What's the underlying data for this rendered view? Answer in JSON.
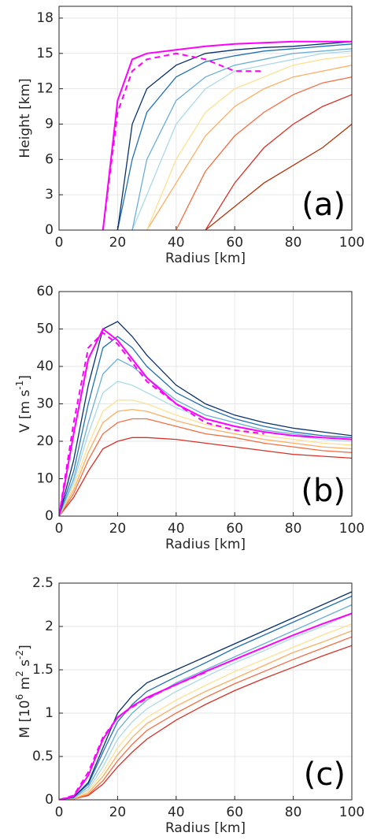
{
  "chart_data": [
    {
      "type": "line",
      "annotation": "(a)",
      "xlabel": "Radius [km]",
      "ylabel_parts": [
        {
          "text": "Height [km]"
        }
      ],
      "xlim": [
        0,
        100
      ],
      "xticks": [
        0,
        20,
        40,
        60,
        80,
        100
      ],
      "ylim": [
        0,
        19
      ],
      "yticks": [
        0,
        3,
        6,
        9,
        12,
        15,
        18
      ],
      "grid": true,
      "x": [
        10,
        15,
        20,
        25,
        30,
        40,
        50,
        60,
        70,
        80,
        90,
        100
      ],
      "series": [
        {
          "color": "#b2330a",
          "values": [
            null,
            null,
            null,
            null,
            null,
            null,
            0,
            2,
            4,
            5.5,
            7,
            9
          ]
        },
        {
          "color": "#d73027",
          "values": [
            null,
            null,
            null,
            null,
            null,
            null,
            0,
            4,
            7,
            9,
            10.5,
            11.5
          ]
        },
        {
          "color": "#f46d43",
          "values": [
            null,
            null,
            null,
            null,
            null,
            0,
            5,
            8,
            10,
            11.5,
            12.5,
            13
          ]
        },
        {
          "color": "#fdae61",
          "values": [
            null,
            null,
            null,
            null,
            0,
            4,
            8,
            10.5,
            12,
            13,
            13.5,
            14
          ]
        },
        {
          "color": "#fee090",
          "values": [
            null,
            null,
            null,
            null,
            0,
            6,
            10,
            12,
            13,
            14,
            14.5,
            14.8
          ]
        },
        {
          "color": "#abd9e9",
          "values": [
            null,
            null,
            null,
            0,
            3,
            9,
            12,
            13.5,
            14,
            14.5,
            15,
            15.2
          ]
        },
        {
          "color": "#6baed6",
          "values": [
            null,
            null,
            null,
            0,
            6,
            11,
            13,
            14,
            14.5,
            15,
            15.2,
            15.4
          ]
        },
        {
          "color": "#2171b5",
          "values": [
            null,
            null,
            0,
            6,
            10,
            13,
            14.3,
            14.8,
            15.2,
            15.4,
            15.6,
            15.8
          ]
        },
        {
          "color": "#08306b",
          "values": [
            null,
            null,
            0,
            9,
            12,
            14,
            15,
            15.3,
            15.5,
            15.6,
            15.8,
            16
          ]
        },
        {
          "color": "#ff00ff",
          "values": [
            null,
            0,
            11,
            14.5,
            15,
            15.3,
            15.6,
            15.8,
            15.9,
            16,
            16,
            16
          ]
        },
        {
          "color": "#ff00ff",
          "dash": true,
          "values": [
            null,
            0,
            10,
            13.5,
            14.5,
            15,
            14.5,
            13.5,
            13.5,
            null,
            null,
            null
          ]
        }
      ]
    },
    {
      "type": "line",
      "annotation": "(b)",
      "xlabel": "Radius [km]",
      "ylabel_parts": [
        {
          "text": "V [m s"
        },
        {
          "text": "-1",
          "sup": true
        },
        {
          "text": "]"
        }
      ],
      "xlim": [
        0,
        100
      ],
      "xticks": [
        0,
        20,
        40,
        60,
        80,
        100
      ],
      "ylim": [
        0,
        60
      ],
      "yticks": [
        0,
        10,
        20,
        30,
        40,
        50,
        60
      ],
      "grid": true,
      "x": [
        0,
        5,
        10,
        15,
        20,
        25,
        30,
        40,
        50,
        60,
        70,
        80,
        90,
        100
      ],
      "series": [
        {
          "color": "#d73027",
          "values": [
            0,
            5,
            12,
            18,
            20,
            21,
            21,
            20.5,
            19.5,
            18.5,
            17.5,
            16.5,
            16,
            15.5
          ]
        },
        {
          "color": "#f46d43",
          "values": [
            0,
            6,
            15,
            22,
            25,
            26,
            26,
            24,
            22,
            21,
            19.5,
            18.5,
            17.5,
            17
          ]
        },
        {
          "color": "#fdae61",
          "values": [
            0,
            7,
            17,
            25,
            28,
            28.5,
            28,
            25.5,
            23.5,
            22,
            20.5,
            19.5,
            18.5,
            18
          ]
        },
        {
          "color": "#fee090",
          "values": [
            0,
            8,
            19,
            28,
            31,
            31,
            30,
            27,
            24.5,
            23,
            21.5,
            20.5,
            19.5,
            19
          ]
        },
        {
          "color": "#abd9e9",
          "values": [
            0,
            9,
            22,
            33,
            36,
            35,
            33,
            29,
            26,
            24,
            22.5,
            21.5,
            20.5,
            20
          ]
        },
        {
          "color": "#6baed6",
          "values": [
            0,
            10,
            25,
            38,
            42,
            40,
            37,
            31,
            27,
            25,
            23,
            22,
            21,
            20.5
          ]
        },
        {
          "color": "#2171b5",
          "values": [
            0,
            12,
            30,
            45,
            48,
            45,
            40,
            33,
            29,
            26,
            24,
            22.5,
            21.5,
            21
          ]
        },
        {
          "color": "#08306b",
          "values": [
            0,
            15,
            35,
            50,
            52,
            48,
            43,
            35,
            30,
            27,
            25,
            23.5,
            22.5,
            21.5
          ]
        },
        {
          "color": "#ff00ff",
          "values": [
            0,
            22,
            42,
            50,
            47,
            42,
            37,
            30,
            26,
            24,
            22.5,
            21.5,
            21,
            20.5
          ]
        },
        {
          "color": "#ff00ff",
          "dash": true,
          "values": [
            0,
            25,
            45,
            49,
            46,
            41,
            36,
            30,
            25,
            23,
            22,
            null,
            null,
            null
          ]
        }
      ]
    },
    {
      "type": "line",
      "annotation": "(c)",
      "xlabel": "Radius [km]",
      "ylabel_parts": [
        {
          "text": "M [10"
        },
        {
          "text": "6",
          "sup": true
        },
        {
          "text": " m"
        },
        {
          "text": "2",
          "sup": true
        },
        {
          "text": " s"
        },
        {
          "text": "-2",
          "sup": true
        },
        {
          "text": "]"
        }
      ],
      "xlim": [
        0,
        100
      ],
      "xticks": [
        0,
        20,
        40,
        60,
        80,
        100
      ],
      "ylim": [
        0,
        2.5
      ],
      "yticks": [
        0,
        0.5,
        1,
        1.5,
        2,
        2.5
      ],
      "grid": true,
      "x": [
        0,
        5,
        10,
        15,
        20,
        25,
        30,
        40,
        50,
        60,
        70,
        80,
        90,
        100
      ],
      "series": [
        {
          "color": "#d73027",
          "values": [
            0,
            0.01,
            0.05,
            0.18,
            0.38,
            0.55,
            0.7,
            0.92,
            1.1,
            1.26,
            1.4,
            1.53,
            1.66,
            1.78
          ]
        },
        {
          "color": "#f46d43",
          "values": [
            0,
            0.01,
            0.06,
            0.22,
            0.45,
            0.64,
            0.8,
            1.0,
            1.18,
            1.34,
            1.48,
            1.62,
            1.75,
            1.88
          ]
        },
        {
          "color": "#fdae61",
          "values": [
            0,
            0.01,
            0.08,
            0.27,
            0.52,
            0.72,
            0.88,
            1.08,
            1.25,
            1.4,
            1.55,
            1.7,
            1.82,
            1.95
          ]
        },
        {
          "color": "#fee090",
          "values": [
            0,
            0.02,
            0.1,
            0.32,
            0.6,
            0.8,
            0.95,
            1.15,
            1.32,
            1.48,
            1.62,
            1.76,
            1.9,
            2.03
          ]
        },
        {
          "color": "#abd9e9",
          "values": [
            0,
            0.02,
            0.12,
            0.38,
            0.7,
            0.9,
            1.05,
            1.25,
            1.42,
            1.58,
            1.72,
            1.87,
            2.0,
            2.15
          ]
        },
        {
          "color": "#6baed6",
          "values": [
            0,
            0.02,
            0.15,
            0.45,
            0.8,
            1.0,
            1.15,
            1.35,
            1.5,
            1.65,
            1.8,
            1.95,
            2.1,
            2.25
          ]
        },
        {
          "color": "#2171b5",
          "values": [
            0,
            0.03,
            0.18,
            0.55,
            0.9,
            1.1,
            1.25,
            1.42,
            1.58,
            1.75,
            1.9,
            2.05,
            2.2,
            2.35
          ]
        },
        {
          "color": "#08306b",
          "values": [
            0,
            0.03,
            0.2,
            0.6,
            1.0,
            1.2,
            1.35,
            1.5,
            1.65,
            1.8,
            1.95,
            2.1,
            2.25,
            2.4
          ]
        },
        {
          "color": "#ff00ff",
          "values": [
            0,
            0.04,
            0.28,
            0.7,
            0.95,
            1.08,
            1.18,
            1.33,
            1.48,
            1.62,
            1.76,
            1.9,
            2.03,
            2.15
          ]
        },
        {
          "color": "#ff00ff",
          "dash": true,
          "values": [
            0,
            0.05,
            0.32,
            0.72,
            0.95,
            1.07,
            1.17,
            1.33,
            1.47,
            null,
            null,
            null,
            null,
            null
          ]
        }
      ]
    }
  ]
}
